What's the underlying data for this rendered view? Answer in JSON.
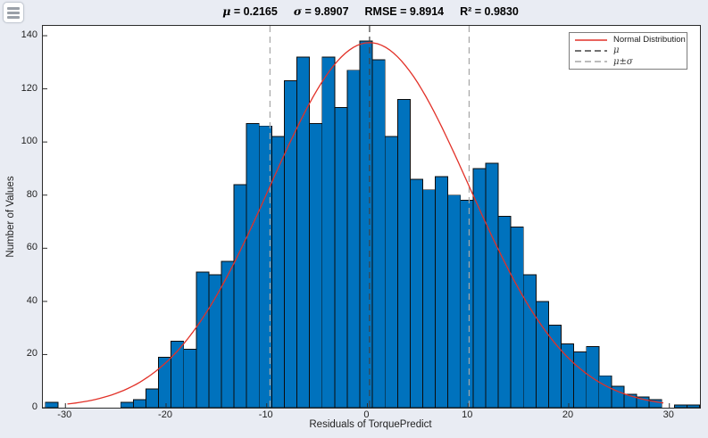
{
  "window": {
    "menu_button": "menu"
  },
  "title": {
    "parts": [
      {
        "sym": "μ",
        "rest": " = 0.2165"
      },
      {
        "sym": "σ",
        "rest": " = 9.8907"
      },
      {
        "sym": "",
        "rest": "RMSE = 9.8914"
      },
      {
        "sym": "",
        "rest": "R² = 0.9830"
      }
    ]
  },
  "stats": {
    "mu": "0.2165",
    "sigma": "9.8907",
    "rmse": "9.8914",
    "r_squared": "0.9830"
  },
  "axes": {
    "xlabel": "Residuals of TorquePredict",
    "ylabel": "Number of Values",
    "x_ticks": [
      -30,
      -20,
      -10,
      0,
      10,
      20,
      30
    ],
    "y_ticks": [
      0,
      20,
      40,
      60,
      80,
      100,
      120,
      140
    ],
    "xlim": [
      -32.24,
      33.04
    ],
    "ylim": [
      0,
      143.7
    ]
  },
  "legend": {
    "items": [
      {
        "label": "Normal Distribution",
        "style": "solid",
        "color": "#e23128",
        "greek": false
      },
      {
        "label": "μ",
        "style": "dashed",
        "color": "#444444",
        "greek": true
      },
      {
        "label": "μ±σ",
        "style": "dashed",
        "color": "#a6a6a6",
        "greek": true
      }
    ]
  },
  "chart_data": {
    "type": "histogram+line",
    "title": "μ = 0.2165  σ = 9.8907  RMSE = 9.8914  R² = 0.9830",
    "xlabel": "Residuals of TorquePredict",
    "ylabel": "Number of Values",
    "xlim": [
      -32.24,
      33.04
    ],
    "ylim": [
      0,
      143.7
    ],
    "grid": false,
    "legend_position": "top-right",
    "bin_start": -32.0,
    "bin_width": 1.25,
    "counts": [
      2,
      0,
      0,
      0,
      0,
      0,
      2,
      3,
      7,
      19,
      25,
      22,
      51,
      50,
      55,
      84,
      107,
      106,
      102,
      123,
      132,
      107,
      132,
      113,
      127,
      138,
      131,
      102,
      116,
      86,
      82,
      87,
      80,
      78,
      90,
      92,
      72,
      68,
      50,
      40,
      31,
      24,
      21,
      23,
      12,
      8,
      5,
      4,
      3,
      0,
      1,
      1
    ],
    "normal_curve": {
      "mu": 0.2165,
      "sigma": 9.8907,
      "peak": 137.4,
      "x_range": [
        -29.8,
        29.4
      ]
    },
    "vlines": [
      {
        "x": 0.2165,
        "kind": "mu",
        "color": "#414141"
      },
      {
        "x": -9.6742,
        "kind": "mu-minus-sigma",
        "color": "#a6a6a6"
      },
      {
        "x": 10.1072,
        "kind": "mu-plus-sigma",
        "color": "#a6a6a6"
      }
    ],
    "bar_color": "#0072BD",
    "bar_edge_color": "#0c0c0c",
    "curve_color": "#e23128"
  },
  "colors": {
    "figure_background": "#e9ecf3",
    "plot_background": "#ffffff",
    "frame": "#2b2b2b",
    "tick_text": "#1f1f1f"
  }
}
